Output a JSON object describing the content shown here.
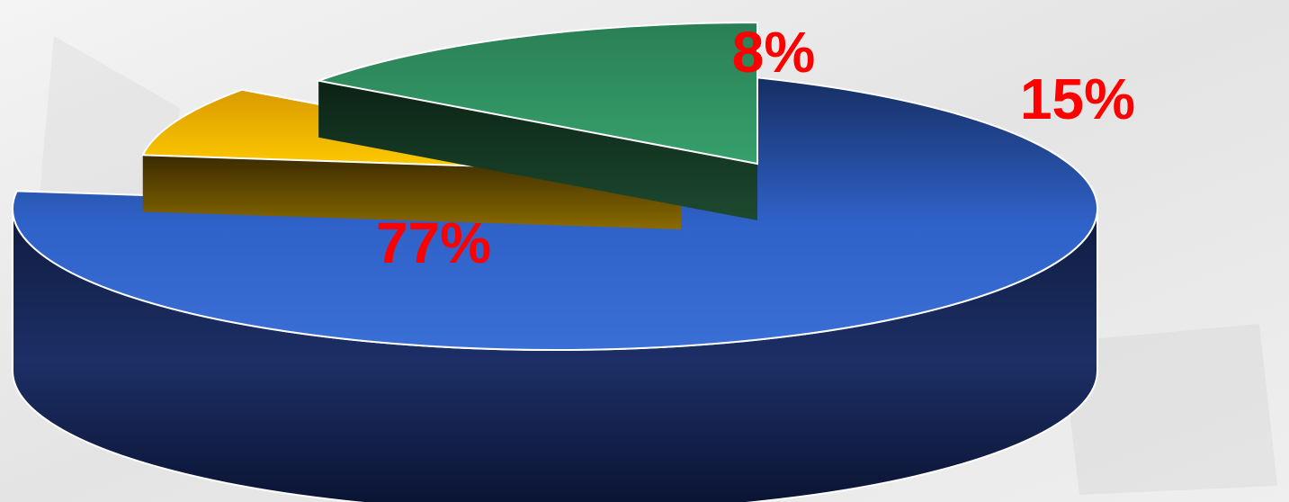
{
  "chart_data": {
    "type": "pie",
    "style": "3d-exploded",
    "title": "",
    "legend": "none",
    "slices": [
      {
        "value": 77,
        "label": "77%",
        "color": "#2f62c8",
        "side_color": "#1c2f66"
      },
      {
        "value": 8,
        "label": "8%",
        "color": "#f2b800",
        "side_color": "#6e5400"
      },
      {
        "value": 15,
        "label": "15%",
        "color": "#2f9a66",
        "side_color": "#163e25"
      }
    ],
    "label_color": "#ff0000"
  }
}
